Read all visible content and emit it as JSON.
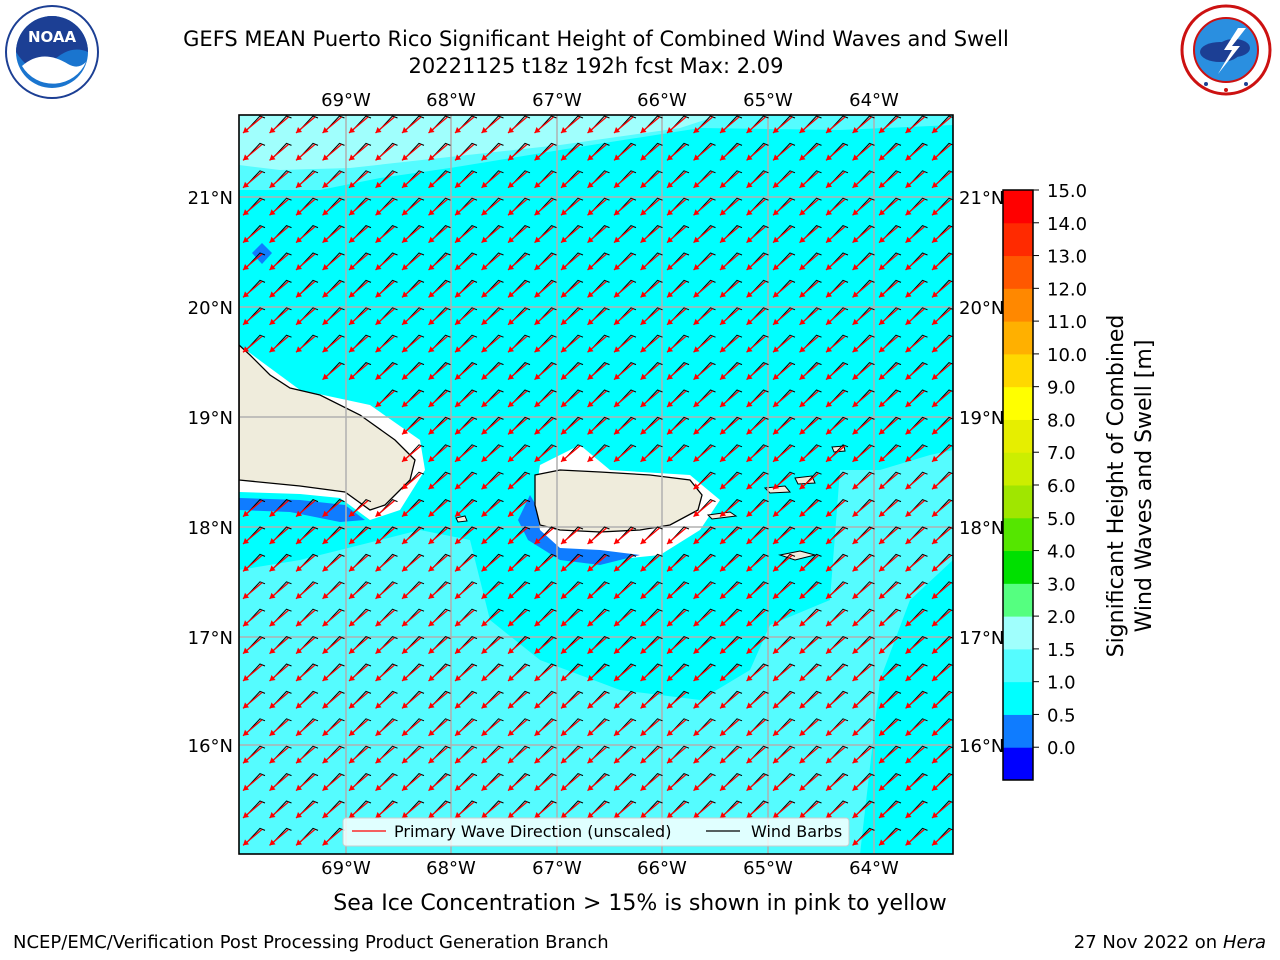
{
  "header": {
    "title_line1": "GEFS MEAN Puerto Rico Significant Height of Combined Wind Waves and Swell",
    "title_line2": "20221125 t18z 192h fcst   Max: 2.09"
  },
  "map": {
    "lon_ticks": [
      "69°W",
      "68°W",
      "67°W",
      "66°W",
      "65°W",
      "64°W"
    ],
    "lat_ticks": [
      "21°N",
      "20°N",
      "19°N",
      "18°N",
      "17°N",
      "16°N"
    ],
    "legend": {
      "wave_label": "Primary Wave Direction (unscaled)",
      "barb_label": "Wind Barbs"
    },
    "colors": {
      "ocean": "#00ffff",
      "ocean_light": "#55fcff",
      "ocean_lighter": "#a0fffd",
      "shallow": "#0f7cff",
      "land": "#efecdc",
      "arrows": "#ff0000",
      "barbs": "#000000"
    }
  },
  "colorbar": {
    "label_line1": "Significant Height of Combined",
    "label_line2": "Wind Waves and Swell [m]",
    "ticks": [
      "15.0",
      "14.0",
      "13.0",
      "12.0",
      "11.0",
      "10.0",
      "9.0",
      "8.0",
      "7.0",
      "6.0",
      "5.0",
      "4.0",
      "3.0",
      "2.0",
      "1.5",
      "1.0",
      "0.5",
      "0.0"
    ],
    "colors": [
      "#0000ff",
      "#0f7cff",
      "#00ffff",
      "#55fcff",
      "#a0fffd",
      "#55ff80",
      "#00e000",
      "#55e600",
      "#a0e600",
      "#ccee00",
      "#e6ee00",
      "#ffff00",
      "#ffd800",
      "#ffb000",
      "#ff8800",
      "#ff5800",
      "#ff2a00",
      "#ff0000"
    ]
  },
  "footer": {
    "sea_ice_note": "Sea Ice Concentration > 15% is shown in pink to yellow",
    "branch": "NCEP/EMC/Verification Post Processing Product Generation Branch",
    "date": "27 Nov 2022 on",
    "host": "Hera"
  }
}
